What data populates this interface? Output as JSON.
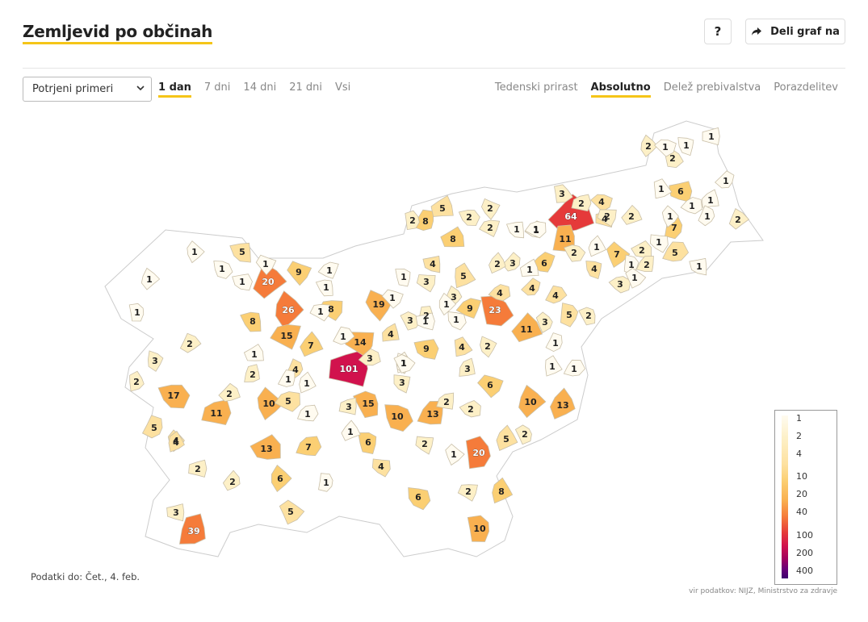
{
  "header": {
    "title": "Zemljevid po občinah",
    "help_label": "?",
    "share_label": "Deli graf na"
  },
  "controls": {
    "select_value": "Potrjeni primeri",
    "ranges": [
      {
        "label": "1 dan",
        "active": true
      },
      {
        "label": "7 dni",
        "active": false
      },
      {
        "label": "14 dni",
        "active": false
      },
      {
        "label": "21 dni",
        "active": false
      },
      {
        "label": "Vsi",
        "active": false
      }
    ],
    "modes": [
      {
        "label": "Tedenski prirast",
        "active": false
      },
      {
        "label": "Absolutno",
        "active": true
      },
      {
        "label": "Delež prebivalstva",
        "active": false
      },
      {
        "label": "Porazdelitev",
        "active": false
      }
    ]
  },
  "legend": {
    "labels": [
      "1",
      "2",
      "4",
      "10",
      "20",
      "40",
      "100",
      "200",
      "400"
    ]
  },
  "footer": {
    "date_text": "Podatki do: Čet., 4. feb.",
    "source_text": "vir podatkov: NIJZ, Ministrstvo za zdravje"
  },
  "map_data": {
    "color_scale": [
      "#fffbf0",
      "#fdf0c7",
      "#fde1a0",
      "#fbcf73",
      "#f9b050",
      "#f57b3a",
      "#e53a3a",
      "#d1124d",
      "#a0005e",
      "#3c006f"
    ],
    "municipalities": [
      {
        "v": 101
      },
      {
        "v": 64
      },
      {
        "v": 39
      },
      {
        "v": 26
      },
      {
        "v": 23
      },
      {
        "v": 20
      },
      {
        "v": 20
      },
      {
        "v": 19
      },
      {
        "v": 17
      },
      {
        "v": 15
      },
      {
        "v": 15
      },
      {
        "v": 14
      },
      {
        "v": 13
      },
      {
        "v": 13
      },
      {
        "v": 13
      },
      {
        "v": 11
      },
      {
        "v": 11
      },
      {
        "v": 11
      },
      {
        "v": 10
      },
      {
        "v": 10
      },
      {
        "v": 10
      },
      {
        "v": 10
      },
      {
        "v": 9
      },
      {
        "v": 9
      },
      {
        "v": 9
      },
      {
        "v": 8
      },
      {
        "v": 8
      },
      {
        "v": 8
      },
      {
        "v": 8
      },
      {
        "v": 8
      },
      {
        "v": 7
      },
      {
        "v": 7
      },
      {
        "v": 7
      },
      {
        "v": 7
      },
      {
        "v": 6
      },
      {
        "v": 6
      },
      {
        "v": 6
      },
      {
        "v": 6
      },
      {
        "v": 6
      },
      {
        "v": 6
      },
      {
        "v": 5
      },
      {
        "v": 5
      },
      {
        "v": 5
      },
      {
        "v": 5
      },
      {
        "v": 5
      },
      {
        "v": 5
      },
      {
        "v": 5
      },
      {
        "v": 5
      },
      {
        "v": 5
      },
      {
        "v": 4
      },
      {
        "v": 4
      },
      {
        "v": 4
      },
      {
        "v": 4
      },
      {
        "v": 4
      },
      {
        "v": 4
      },
      {
        "v": 4
      },
      {
        "v": 4
      },
      {
        "v": 4
      },
      {
        "v": 4
      },
      {
        "v": 4
      },
      {
        "v": 4
      },
      {
        "v": 4
      },
      {
        "v": 3
      },
      {
        "v": 3
      },
      {
        "v": 3
      },
      {
        "v": 3
      },
      {
        "v": 3
      },
      {
        "v": 3
      },
      {
        "v": 3
      },
      {
        "v": 3
      },
      {
        "v": 3
      },
      {
        "v": 3
      },
      {
        "v": 3
      },
      {
        "v": 3
      },
      {
        "v": 3
      },
      {
        "v": 2
      },
      {
        "v": 2
      },
      {
        "v": 2
      },
      {
        "v": 2
      },
      {
        "v": 2
      },
      {
        "v": 2
      },
      {
        "v": 2
      },
      {
        "v": 2
      },
      {
        "v": 2
      },
      {
        "v": 2
      },
      {
        "v": 2
      },
      {
        "v": 2
      },
      {
        "v": 2
      },
      {
        "v": 2
      },
      {
        "v": 2
      },
      {
        "v": 2
      },
      {
        "v": 2
      },
      {
        "v": 2
      },
      {
        "v": 2
      },
      {
        "v": 2
      },
      {
        "v": 2
      },
      {
        "v": 2
      },
      {
        "v": 2
      },
      {
        "v": 2
      },
      {
        "v": 2
      },
      {
        "v": 2
      },
      {
        "v": 2
      },
      {
        "v": 2
      },
      {
        "v": 1
      },
      {
        "v": 1
      },
      {
        "v": 1
      },
      {
        "v": 1
      },
      {
        "v": 1
      },
      {
        "v": 1
      },
      {
        "v": 1
      },
      {
        "v": 1
      },
      {
        "v": 1
      },
      {
        "v": 1
      },
      {
        "v": 1
      },
      {
        "v": 1
      },
      {
        "v": 1
      },
      {
        "v": 1
      },
      {
        "v": 1
      },
      {
        "v": 1
      },
      {
        "v": 1
      },
      {
        "v": 1
      },
      {
        "v": 1
      },
      {
        "v": 1
      },
      {
        "v": 1
      },
      {
        "v": 1
      },
      {
        "v": 1
      },
      {
        "v": 1
      },
      {
        "v": 1
      },
      {
        "v": 1
      },
      {
        "v": 1
      },
      {
        "v": 1
      },
      {
        "v": 1
      },
      {
        "v": 1
      },
      {
        "v": 1
      },
      {
        "v": 1
      },
      {
        "v": 1
      },
      {
        "v": 1
      },
      {
        "v": 1
      },
      {
        "v": 1
      },
      {
        "v": 1
      },
      {
        "v": 1
      },
      {
        "v": 1
      },
      {
        "v": 1
      },
      {
        "v": 1
      },
      {
        "v": 1
      },
      {
        "v": 1
      },
      {
        "v": 1
      },
      {
        "v": 1
      },
      {
        "v": 1
      }
    ]
  }
}
